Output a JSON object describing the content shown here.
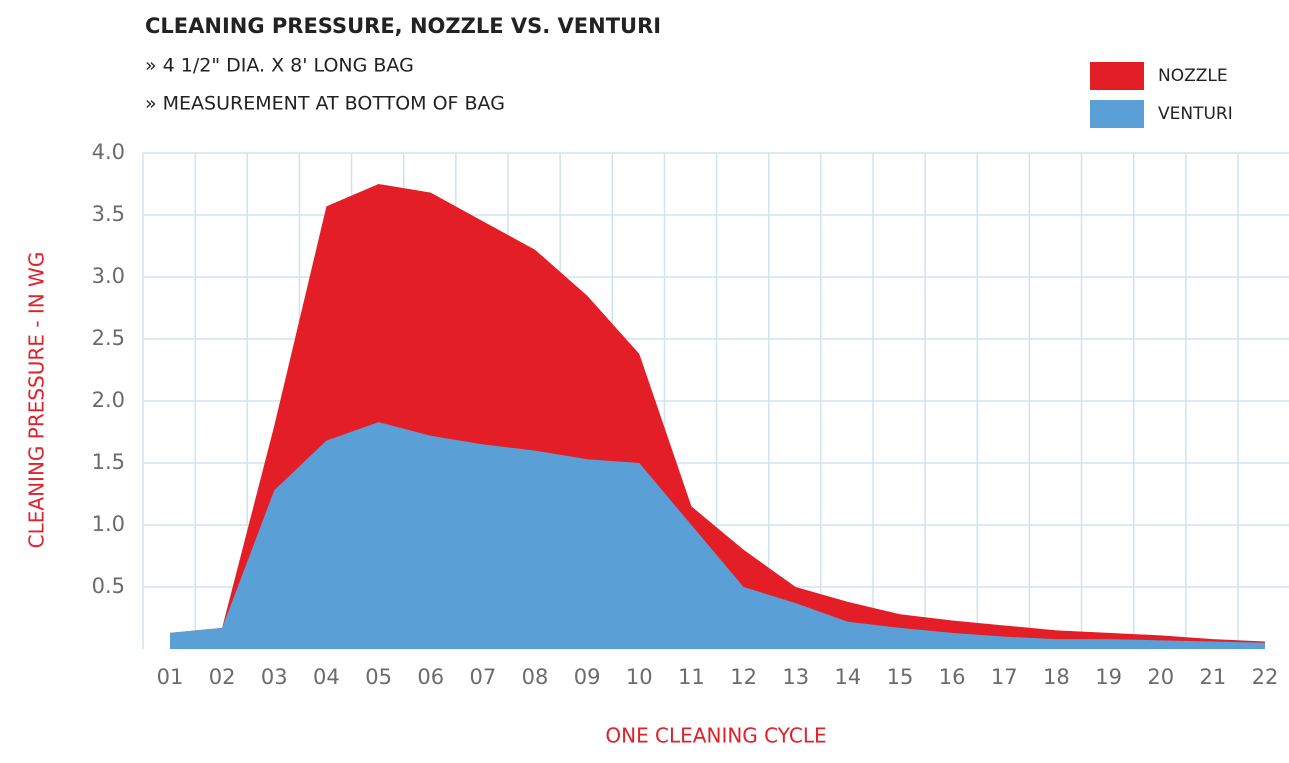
{
  "chart_data": {
    "type": "area",
    "title": "CLEANING PRESSURE, NOZZLE VS. VENTURI",
    "subtitles": [
      "» 4 1/2\" DIA. X 8' LONG BAG",
      "» MEASUREMENT AT BOTTOM OF BAG"
    ],
    "y_label": "CLEANING PRESSURE - IN WG",
    "x_label": "ONE CLEANING CYCLE",
    "categories": [
      "01",
      "02",
      "03",
      "04",
      "05",
      "06",
      "07",
      "08",
      "09",
      "10",
      "11",
      "12",
      "13",
      "14",
      "15",
      "16",
      "17",
      "18",
      "19",
      "20",
      "21",
      "22"
    ],
    "series": [
      {
        "name": "NOZZLE",
        "color": "#e41e26",
        "values": [
          0.13,
          0.17,
          1.8,
          3.57,
          3.75,
          3.68,
          3.45,
          3.22,
          2.85,
          2.38,
          1.15,
          0.8,
          0.5,
          0.38,
          0.28,
          0.23,
          0.19,
          0.15,
          0.13,
          0.11,
          0.08,
          0.06
        ]
      },
      {
        "name": "VENTURI",
        "color": "#5a9fd6",
        "values": [
          0.13,
          0.17,
          1.28,
          1.68,
          1.83,
          1.72,
          1.65,
          1.6,
          1.53,
          1.5,
          1.0,
          0.5,
          0.37,
          0.22,
          0.17,
          0.13,
          0.1,
          0.08,
          0.08,
          0.07,
          0.06,
          0.05
        ]
      }
    ],
    "ylim": [
      0,
      4
    ],
    "yticks": [
      0.5,
      {
        "value": 1,
        "label": "1.0"
      },
      1.5,
      {
        "value": 2,
        "label": "2.0"
      },
      2.5,
      {
        "value": 3,
        "label": "3.0"
      },
      3.5,
      {
        "value": 4,
        "label": "4.0"
      }
    ],
    "grid": true,
    "legend": "top-right"
  }
}
